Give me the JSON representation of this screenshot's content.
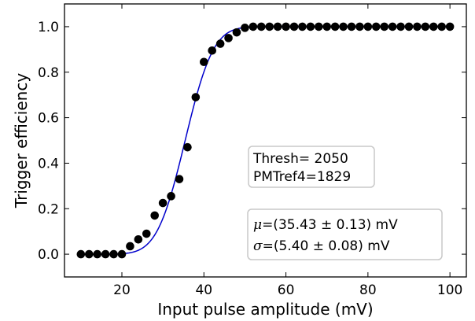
{
  "chart_data": {
    "type": "scatter",
    "xlabel": "Input pulse amplitude (mV)",
    "ylabel": "Trigger efficiency",
    "xlim": [
      6,
      104
    ],
    "ylim": [
      -0.1,
      1.1
    ],
    "xticks": [
      20,
      40,
      60,
      80,
      100
    ],
    "yticks": [
      0.0,
      0.2,
      0.4,
      0.6,
      0.8,
      1.0
    ],
    "xtick_labels": [
      "20",
      "40",
      "60",
      "80",
      "100"
    ],
    "ytick_labels": [
      "0.0",
      "0.2",
      "0.4",
      "0.6",
      "0.8",
      "1.0"
    ],
    "grid": false,
    "series": [
      {
        "kind": "points",
        "color": "#000000",
        "x": [
          10,
          12,
          14,
          16,
          18,
          20,
          22,
          24,
          26,
          28,
          30,
          32,
          34,
          36,
          38,
          40,
          42,
          44,
          46,
          48,
          50,
          52,
          54,
          56,
          58,
          60,
          62,
          64,
          66,
          68,
          70,
          72,
          74,
          76,
          78,
          80,
          82,
          84,
          86,
          88,
          90,
          92,
          94,
          96,
          98,
          100
        ],
        "y": [
          0.0,
          0.0,
          0.0,
          0.0,
          0.0,
          0.0,
          0.035,
          0.065,
          0.09,
          0.17,
          0.225,
          0.255,
          0.33,
          0.47,
          0.69,
          0.845,
          0.895,
          0.925,
          0.95,
          0.975,
          0.995,
          1.0,
          1.0,
          1.0,
          1.0,
          1.0,
          1.0,
          1.0,
          1.0,
          1.0,
          1.0,
          1.0,
          1.0,
          1.0,
          1.0,
          1.0,
          1.0,
          1.0,
          1.0,
          1.0,
          1.0,
          1.0,
          1.0,
          1.0,
          1.0,
          1.0
        ]
      },
      {
        "kind": "fit-curve",
        "color": "#0000cc",
        "model": "error-function",
        "mu": 35.43,
        "sigma": 5.4,
        "x_range": [
          10,
          100
        ]
      }
    ],
    "annotations": {
      "threshold_box": {
        "line1": "Thresh= 2050",
        "line2": "PMTref4=1829"
      },
      "fit_box": {
        "mu_symbol": "μ",
        "mu_text": "=(35.43 ± 0.13) mV",
        "sigma_symbol": "σ",
        "sigma_text": "=(5.40 ± 0.08) mV"
      }
    }
  }
}
